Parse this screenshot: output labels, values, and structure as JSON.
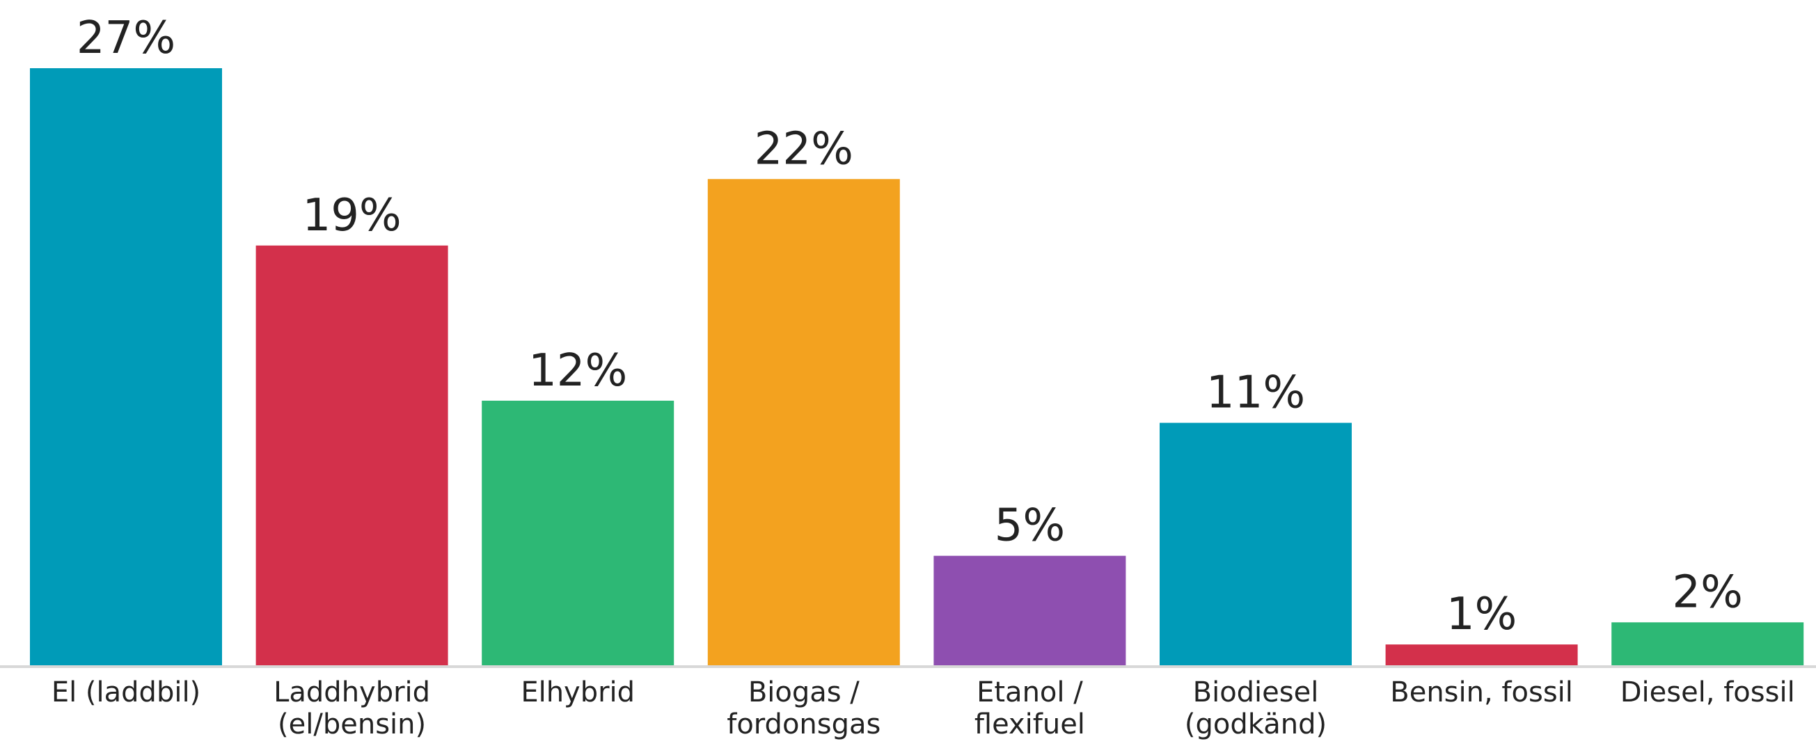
{
  "chart_data": {
    "type": "bar",
    "categories": [
      "El (laddbil)",
      "Laddhybrid (el/bensin)",
      "Elhybrid",
      "Biogas / fordonsgas",
      "Etanol / flexifuel",
      "Biodiesel (godkänd)",
      "Bensin, fossil",
      "Diesel, fossil"
    ],
    "category_lines": [
      [
        "El (laddbil)"
      ],
      [
        "Laddhybrid",
        "(el/bensin)"
      ],
      [
        "Elhybrid"
      ],
      [
        "Biogas /",
        "fordonsgas"
      ],
      [
        "Etanol /",
        "flexifuel"
      ],
      [
        "Biodiesel",
        "(godkänd)"
      ],
      [
        "Bensin, fossil"
      ],
      [
        "Diesel, fossil"
      ]
    ],
    "values": [
      27,
      19,
      12,
      22,
      5,
      11,
      1,
      2
    ],
    "value_labels": [
      "27%",
      "19%",
      "12%",
      "22%",
      "5%",
      "11%",
      "1%",
      "2%"
    ],
    "colors": [
      "#009BB8",
      "#D3304B",
      "#2DB875",
      "#F3A21F",
      "#8E4FB0",
      "#009BB8",
      "#D3304B",
      "#2DB875"
    ],
    "title": "",
    "xlabel": "",
    "ylabel": "",
    "ylim": [
      0,
      27
    ],
    "grid": false,
    "legend": "none"
  }
}
